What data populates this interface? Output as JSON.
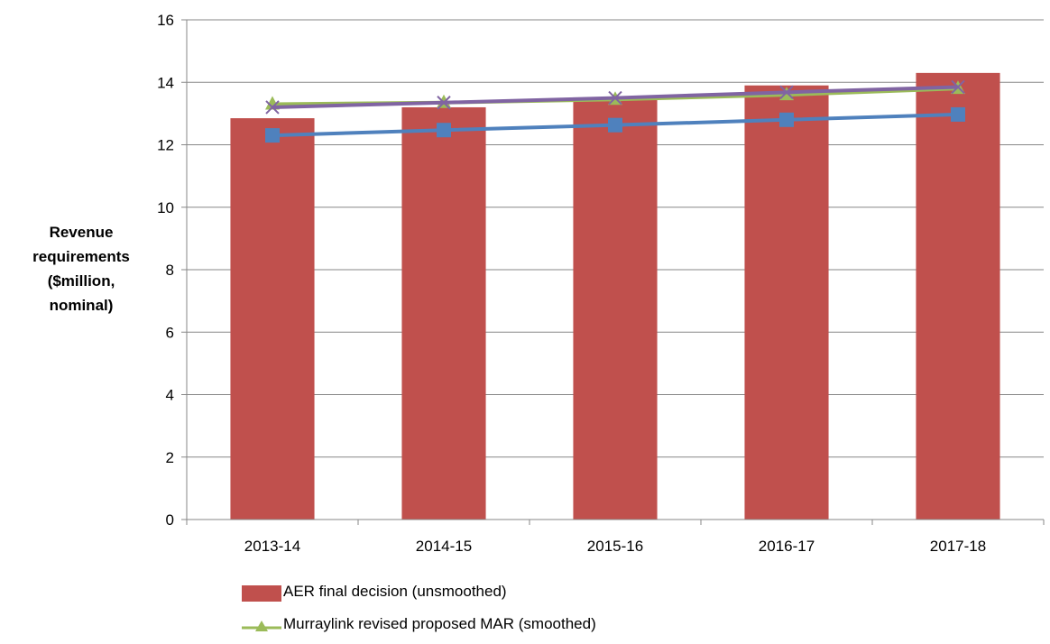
{
  "chart_data": {
    "type": "bar",
    "categories": [
      "2013-14",
      "2014-15",
      "2015-16",
      "2016-17",
      "2017-18"
    ],
    "ylabel": "Revenue requirements ($million, nominal)",
    "ylabel_lines": [
      "Revenue",
      "requirements",
      "($million,",
      "nominal)"
    ],
    "ylim": [
      0,
      16
    ],
    "yticks": [
      0,
      2,
      4,
      6,
      8,
      10,
      12,
      14,
      16
    ],
    "grid": true,
    "legend_position": "bottom-left",
    "series": [
      {
        "name": "AER final decision (unsmoothed)",
        "type": "bar",
        "color": "#C0504D",
        "values": [
          12.85,
          13.2,
          13.5,
          13.9,
          14.3
        ]
      },
      {
        "name": "Murraylink revised proposed MAR (smoothed)",
        "type": "line",
        "marker": "triangle",
        "color": "#9BBB59",
        "values": [
          13.3,
          13.35,
          13.45,
          13.6,
          13.8
        ]
      },
      {
        "type": "line",
        "marker": "x",
        "color": "#8064A2",
        "values": [
          13.2,
          13.35,
          13.5,
          13.68,
          13.85
        ]
      },
      {
        "type": "line",
        "marker": "square",
        "color": "#4F81BD",
        "values": [
          12.3,
          12.47,
          12.63,
          12.8,
          12.97
        ]
      }
    ]
  }
}
